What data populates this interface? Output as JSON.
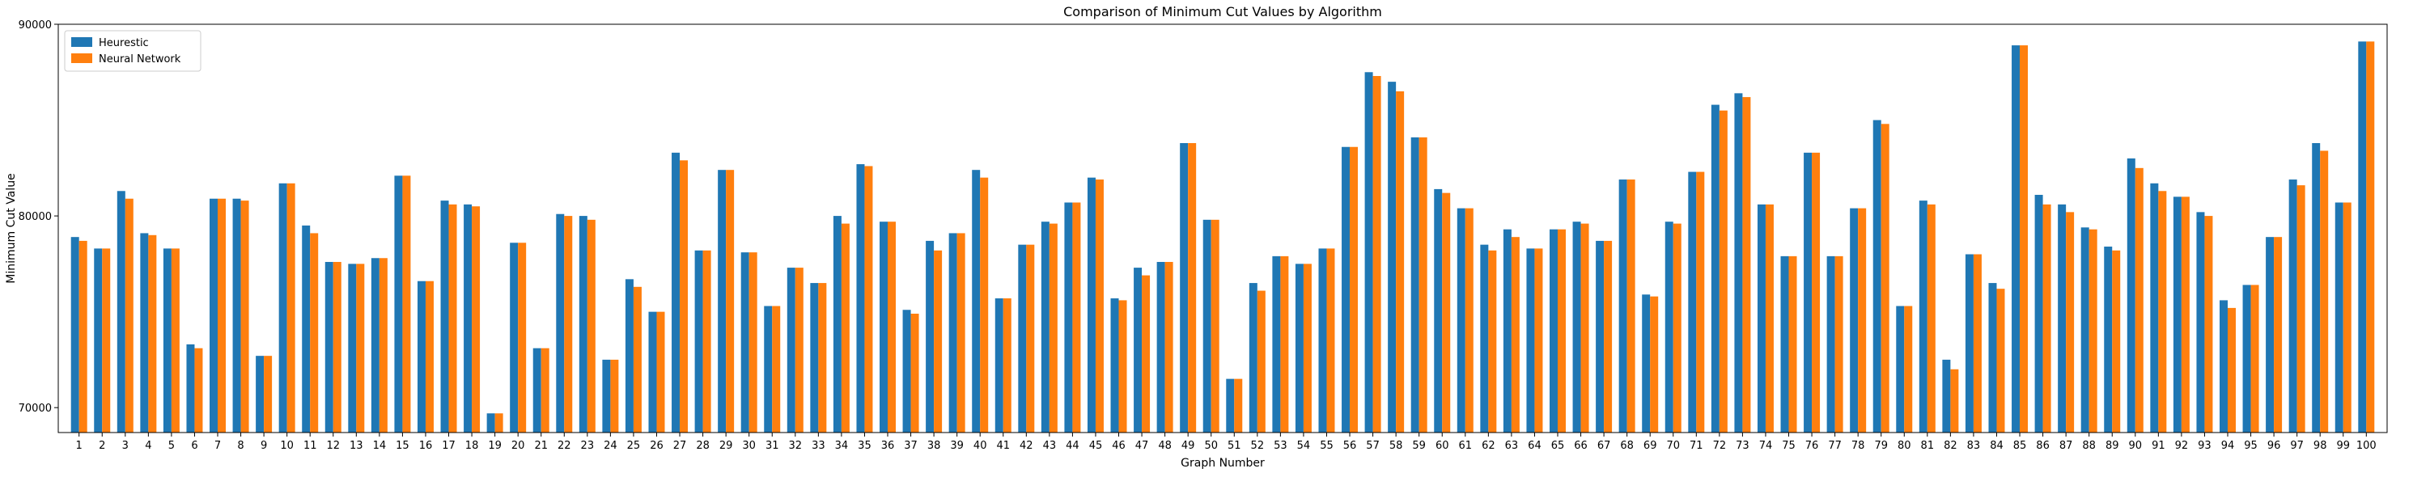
{
  "chart_data": {
    "type": "bar",
    "title": "Comparison of Minimum Cut Values by Algorithm",
    "xlabel": "Graph Number",
    "ylabel": "Minimum Cut Value",
    "ylim": [
      68700,
      90000
    ],
    "yticks": [
      70000,
      80000,
      90000
    ],
    "grid": false,
    "legend_position": "top-left",
    "categories": [
      "1",
      "2",
      "3",
      "4",
      "5",
      "6",
      "7",
      "8",
      "9",
      "10",
      "11",
      "12",
      "13",
      "14",
      "15",
      "16",
      "17",
      "18",
      "19",
      "20",
      "21",
      "22",
      "23",
      "24",
      "25",
      "26",
      "27",
      "28",
      "29",
      "30",
      "31",
      "32",
      "33",
      "34",
      "35",
      "36",
      "37",
      "38",
      "39",
      "40",
      "41",
      "42",
      "43",
      "44",
      "45",
      "46",
      "47",
      "48",
      "49",
      "50",
      "51",
      "52",
      "53",
      "54",
      "55",
      "56",
      "57",
      "58",
      "59",
      "60",
      "61",
      "62",
      "63",
      "64",
      "65",
      "66",
      "67",
      "68",
      "69",
      "70",
      "71",
      "72",
      "73",
      "74",
      "75",
      "76",
      "77",
      "78",
      "79",
      "80",
      "81",
      "82",
      "83",
      "84",
      "85",
      "86",
      "87",
      "88",
      "89",
      "90",
      "91",
      "92",
      "93",
      "94",
      "95",
      "96",
      "97",
      "98",
      "99",
      "100"
    ],
    "series": [
      {
        "name": "Heurestic",
        "color": "#1f77b4",
        "values": [
          78900,
          78300,
          81300,
          79100,
          78300,
          73300,
          80900,
          80900,
          72700,
          81700,
          79500,
          77600,
          77500,
          77800,
          82100,
          76600,
          80800,
          80600,
          69700,
          78600,
          73100,
          80100,
          80000,
          72500,
          76700,
          75000,
          83300,
          78200,
          82400,
          78100,
          75300,
          77300,
          76500,
          80000,
          82700,
          79700,
          75100,
          78700,
          79100,
          82400,
          75700,
          78500,
          79700,
          80700,
          82000,
          75700,
          77300,
          77600,
          83800,
          79800,
          71500,
          76500,
          77900,
          77500,
          78300,
          83600,
          87500,
          87000,
          84100,
          81400,
          80400,
          78500,
          79300,
          78300,
          79300,
          79700,
          78700,
          81900,
          75900,
          79700,
          82300,
          85800,
          86400,
          80600,
          77900,
          83300,
          77900,
          80400,
          85000,
          75300,
          80800,
          72500,
          78000,
          76500,
          88900,
          81100,
          80600,
          79400,
          78400,
          83000,
          81700,
          81000,
          80200,
          75600,
          76400,
          78900,
          81900,
          83800,
          80700,
          89100
        ]
      },
      {
        "name": "Neural Network",
        "color": "#ff7f0e",
        "values": [
          78700,
          78300,
          80900,
          79000,
          78300,
          73100,
          80900,
          80800,
          72700,
          81700,
          79100,
          77600,
          77500,
          77800,
          82100,
          76600,
          80600,
          80500,
          69700,
          78600,
          73100,
          80000,
          79800,
          72500,
          76300,
          75000,
          82900,
          78200,
          82400,
          78100,
          75300,
          77300,
          76500,
          79600,
          82600,
          79700,
          74900,
          78200,
          79100,
          82000,
          75700,
          78500,
          79600,
          80700,
          81900,
          75600,
          76900,
          77600,
          83800,
          79800,
          71500,
          76100,
          77900,
          77500,
          78300,
          83600,
          87300,
          86500,
          84100,
          81200,
          80400,
          78200,
          78900,
          78300,
          79300,
          79600,
          78700,
          81900,
          75800,
          79600,
          82300,
          85500,
          86200,
          80600,
          77900,
          83300,
          77900,
          80400,
          84800,
          75300,
          80600,
          72000,
          78000,
          76200,
          88900,
          80600,
          80200,
          79300,
          78200,
          82500,
          81300,
          81000,
          80000,
          75200,
          76400,
          78900,
          81600,
          83400,
          80700,
          89100
        ]
      }
    ]
  }
}
